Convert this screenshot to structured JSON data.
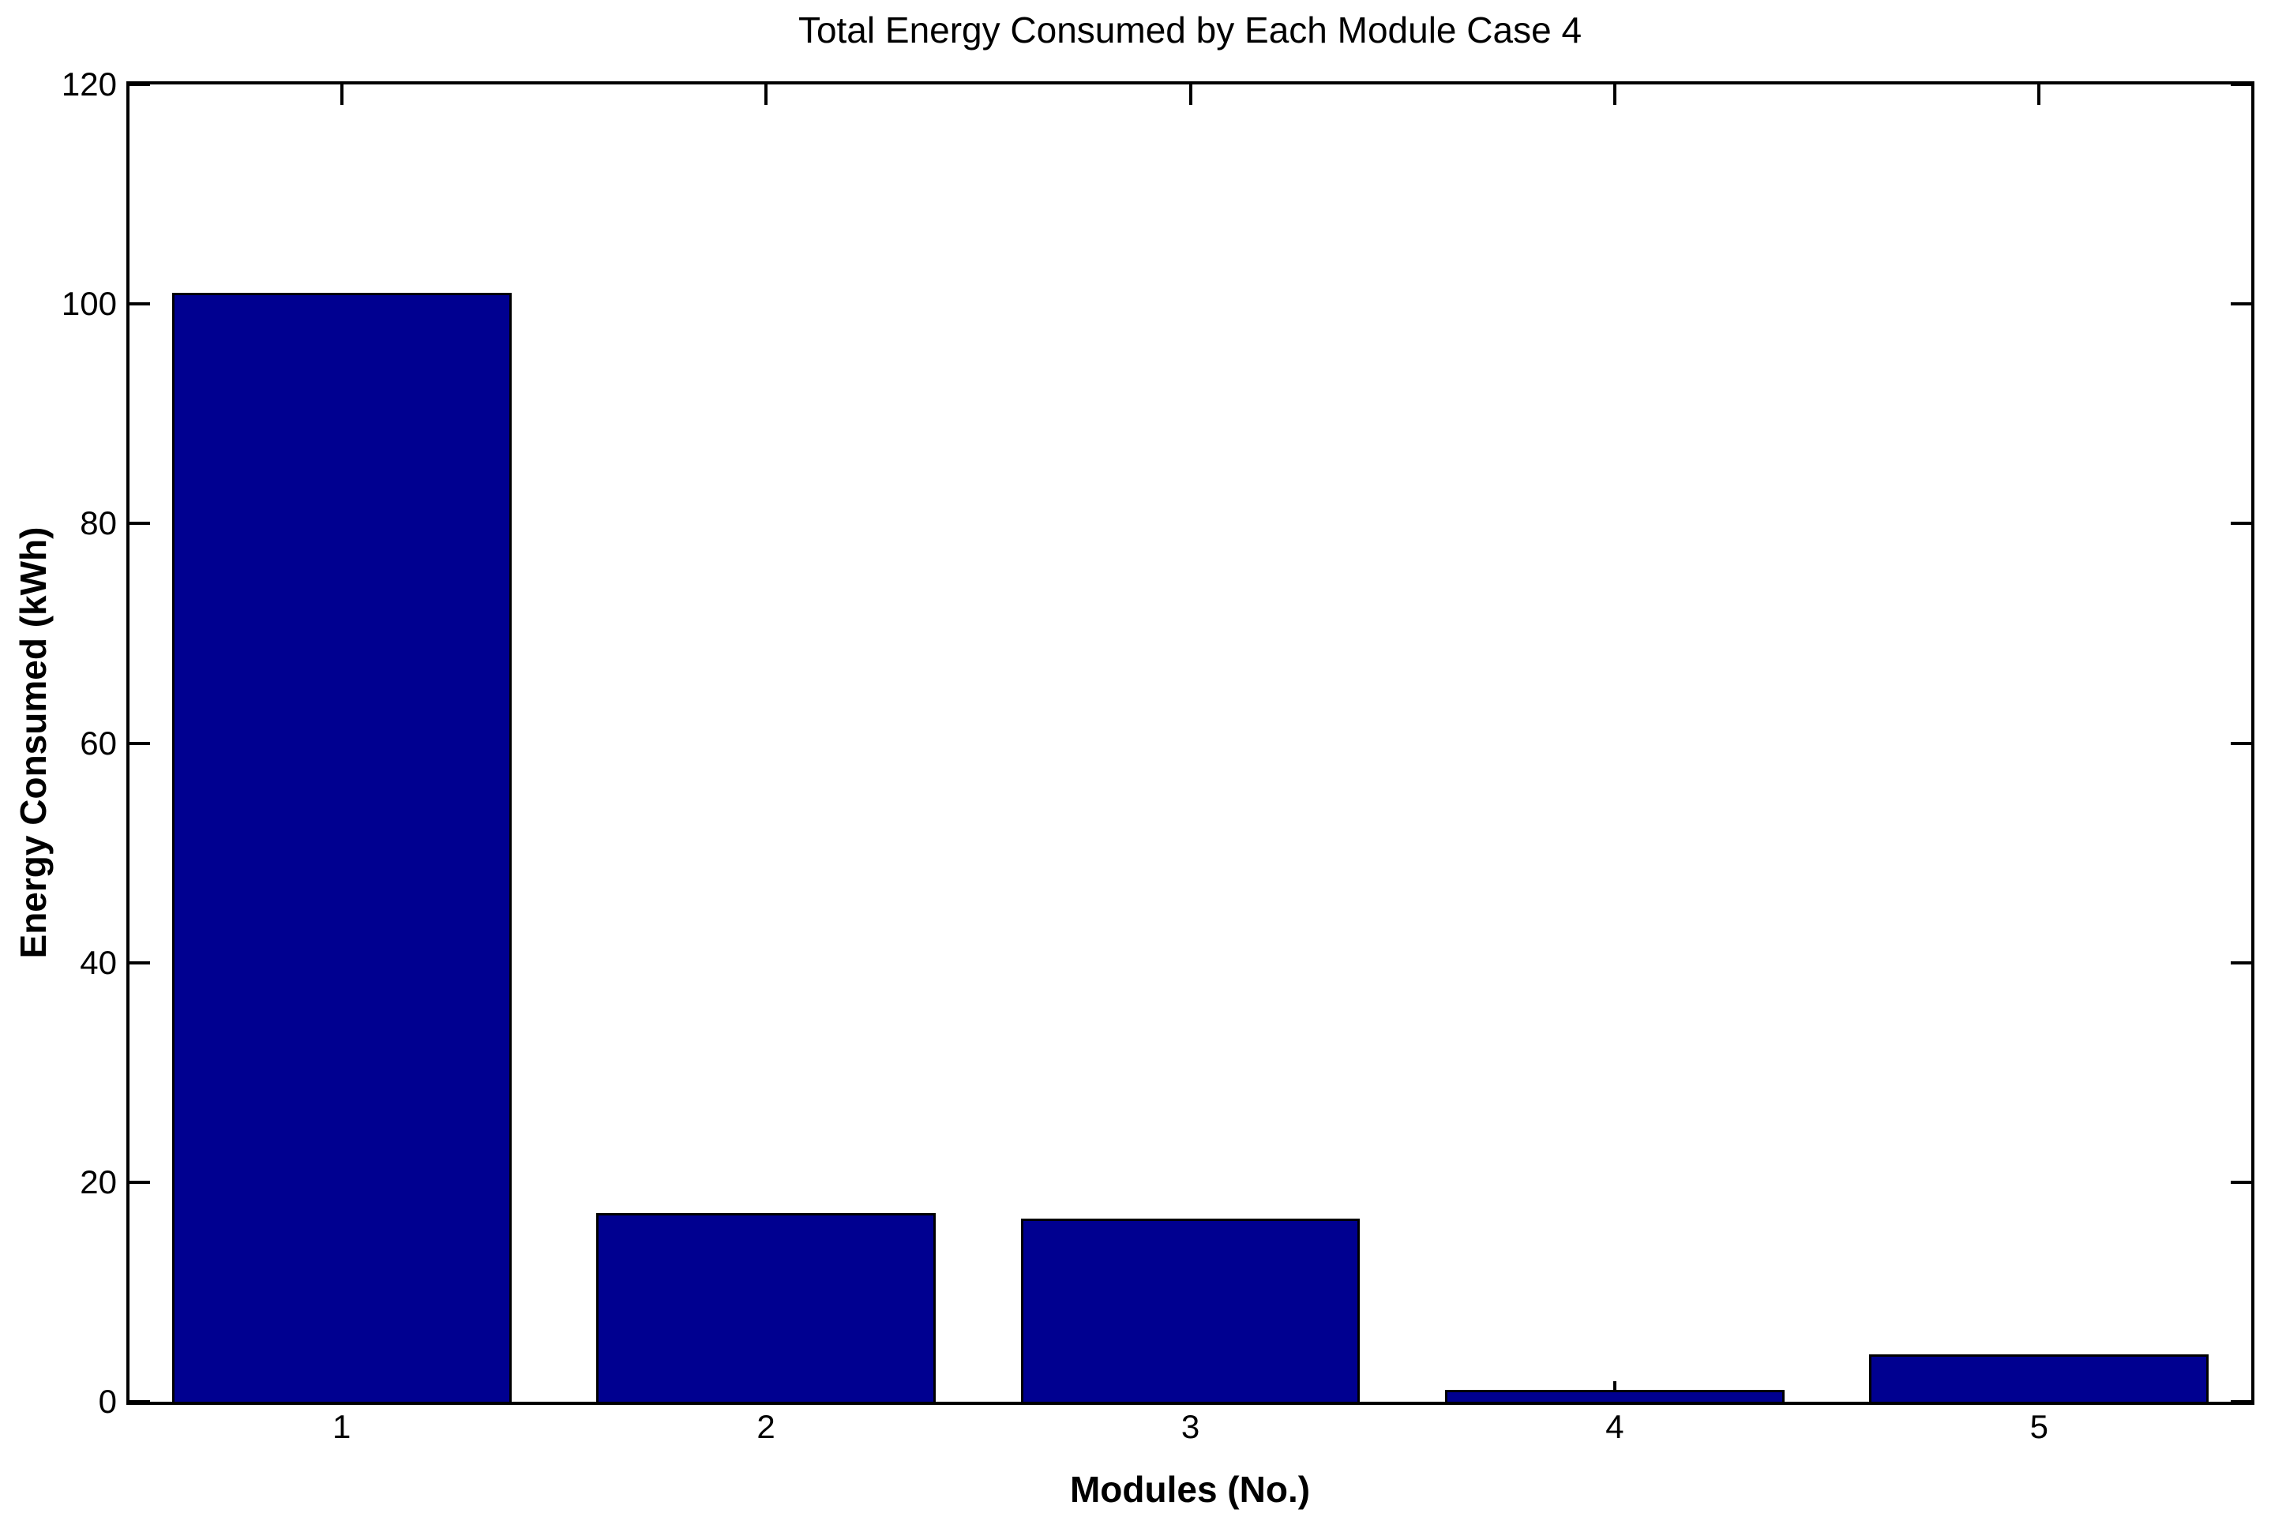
{
  "chart_data": {
    "type": "bar",
    "title": "Total Energy Consumed by Each Module Case 4",
    "xlabel": "Modules (No.)",
    "ylabel": "Energy Consumed (kWh)",
    "categories": [
      "1",
      "2",
      "3",
      "4",
      "5"
    ],
    "values": [
      101,
      17.2,
      16.7,
      1.1,
      4.3
    ],
    "ylim": [
      0,
      120
    ],
    "yticks": [
      0,
      20,
      40,
      60,
      80,
      100,
      120
    ],
    "bar_width_fraction": 0.8,
    "bar_color": "#000090",
    "bar_edge_color": "#000000",
    "axis_color": "#000000",
    "background_color": "#ffffff",
    "grid": false,
    "legend": "none",
    "tick_direction": "in"
  }
}
